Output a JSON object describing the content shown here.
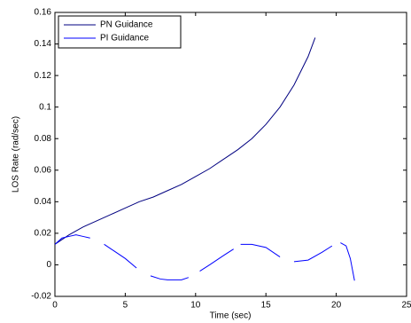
{
  "chart_data": {
    "type": "line",
    "x_label": "Time (sec)",
    "y_label": "LOS Rate (rad/sec)",
    "xlim": [
      0,
      25
    ],
    "xticks": [
      0,
      5,
      10,
      15,
      20,
      25
    ],
    "ylim": [
      -0.02,
      0.16
    ],
    "yticks": [
      -0.02,
      0,
      0.02,
      0.04,
      0.06,
      0.08,
      0.1,
      0.12,
      0.14,
      0.16
    ],
    "legend": "top-left",
    "series": [
      {
        "name": "PN Guidance",
        "color": "#000080",
        "x": [
          0,
          1,
          2,
          3,
          4,
          5,
          6,
          7,
          8,
          9,
          10,
          11,
          12,
          13,
          14,
          15,
          16,
          17,
          18,
          18.5
        ],
        "values": [
          0.013,
          0.019,
          0.024,
          0.028,
          0.032,
          0.036,
          0.04,
          0.043,
          0.047,
          0.051,
          0.056,
          0.061,
          0.067,
          0.073,
          0.08,
          0.089,
          0.1,
          0.114,
          0.132,
          0.144
        ]
      },
      {
        "name": "PI Guidance",
        "color": "#0000ff",
        "x": [
          0,
          0.5,
          1,
          1.5,
          2,
          2.5,
          null,
          3.5,
          4,
          5,
          5.8,
          null,
          6.8,
          7.5,
          8,
          9,
          9.5,
          null,
          10.3,
          11,
          12,
          12.7,
          null,
          13.2,
          14,
          15,
          16,
          null,
          17,
          18,
          19,
          19.7,
          null,
          20.3,
          20.7,
          21,
          21.3
        ],
        "values": [
          0.013,
          0.017,
          0.018,
          0.019,
          0.018,
          0.017,
          null,
          0.013,
          0.01,
          0.004,
          -0.002,
          null,
          -0.007,
          -0.009,
          -0.0095,
          -0.0095,
          -0.008,
          null,
          -0.004,
          0.0,
          0.006,
          0.01,
          null,
          0.013,
          0.013,
          0.011,
          0.005,
          null,
          0.002,
          0.003,
          0.008,
          0.012,
          null,
          0.014,
          0.012,
          0.004,
          -0.01
        ]
      }
    ]
  }
}
